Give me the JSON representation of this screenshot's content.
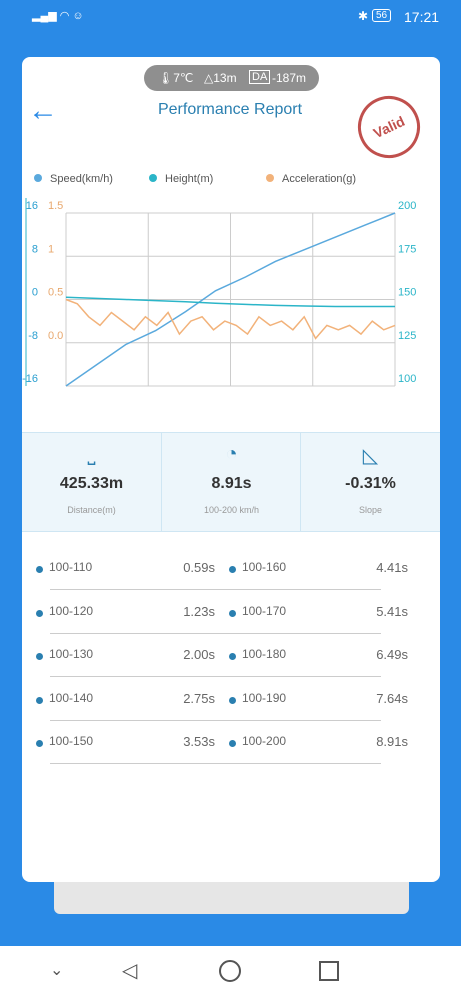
{
  "status_bar": {
    "battery": "56",
    "time": "17:21"
  },
  "conditions": {
    "temperature": "7℃",
    "altitude": "13m",
    "da_label": "DA",
    "density_altitude": "-187m"
  },
  "header": {
    "title": "Performance Report",
    "stamp": "Valid"
  },
  "chart_data": {
    "type": "line",
    "series": [
      {
        "name": "Speed(km/h)",
        "color": "#5aa9dd",
        "axis": "y2",
        "values": [
          100,
          112,
          124,
          132,
          143,
          155,
          163,
          172,
          179,
          186,
          193,
          200
        ]
      },
      {
        "name": "Height(m)",
        "color": "#2bb5c8",
        "axis": "y",
        "values": [
          0.4,
          0.2,
          0,
          -0.2,
          -0.4,
          -0.7,
          -0.9,
          -1.1,
          -1.2,
          -1.3,
          -1.3,
          -1.3
        ]
      },
      {
        "name": "Acceleration(g)",
        "color": "#f2b27a",
        "axis": "y3",
        "values": [
          0.5,
          0.45,
          0.3,
          0.2,
          0.35,
          0.25,
          0.15,
          0.3,
          0.2,
          0.35,
          0.1,
          0.25,
          0.3,
          0.15,
          0.25,
          0.2,
          0.1,
          0.3,
          0.2,
          0.25,
          0.15,
          0.3,
          0.05,
          0.2,
          0.15,
          0.2,
          0.1,
          0.25,
          0.15,
          0.2
        ]
      }
    ],
    "ylim": [
      -16,
      16
    ],
    "yticks": [
      16,
      8,
      0,
      -8,
      -16
    ],
    "y3lim": [
      -0.5,
      1.5
    ],
    "y3ticks": [
      1.5,
      1,
      0.5,
      {
        "value": 0,
        "label": "0.0"
      }
    ],
    "y2lim": [
      100,
      200
    ],
    "y2ticks": [
      200,
      175,
      150,
      125,
      100
    ],
    "grid": true
  },
  "stats": [
    {
      "value": "425.33m",
      "label": "Distance(m)"
    },
    {
      "value": "8.91s",
      "label": "100-200 km/h"
    },
    {
      "value": "-0.31%",
      "label": "Slope"
    }
  ],
  "splits": [
    [
      [
        "100-110",
        "0.59s"
      ],
      [
        "100-160",
        "4.41s"
      ]
    ],
    [
      [
        "100-120",
        "1.23s"
      ],
      [
        "100-170",
        "5.41s"
      ]
    ],
    [
      [
        "100-130",
        "2.00s"
      ],
      [
        "100-180",
        "6.49s"
      ]
    ],
    [
      [
        "100-140",
        "2.75s"
      ],
      [
        "100-190",
        "7.64s"
      ]
    ],
    [
      [
        "100-150",
        "3.53s"
      ],
      [
        "100-200",
        "8.91s"
      ]
    ]
  ]
}
